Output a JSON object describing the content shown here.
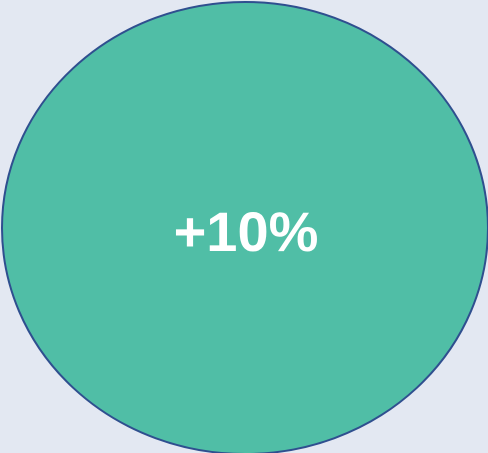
{
  "badge": {
    "label": "+10%"
  }
}
